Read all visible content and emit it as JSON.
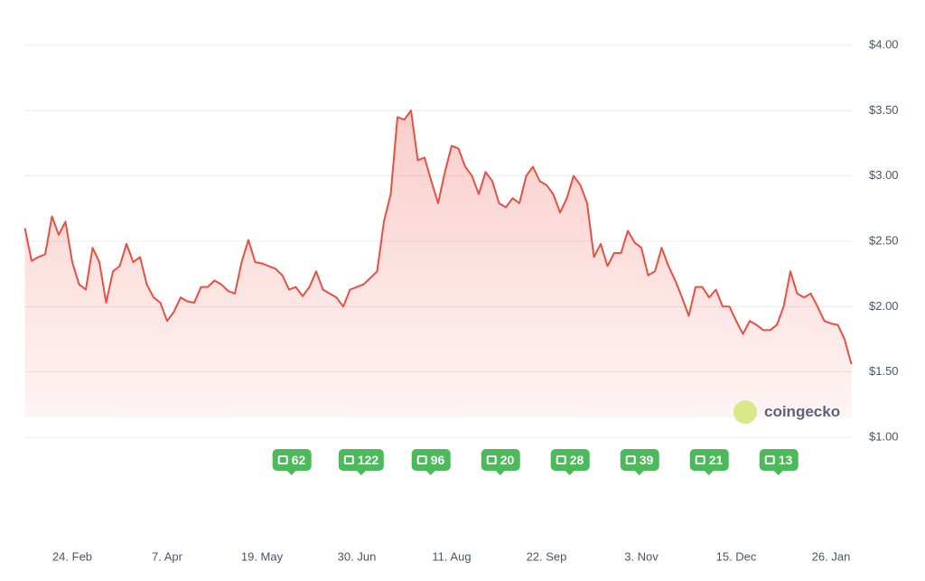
{
  "watermark": "coingecko",
  "chart_data": {
    "type": "line",
    "color": "#ea4f43",
    "grid": true,
    "ylim": [
      1,
      4
    ],
    "yticks": [
      {
        "value": 1,
        "label": "$1.00"
      },
      {
        "value": 1.5,
        "label": "$1.50"
      },
      {
        "value": 2,
        "label": "$2.00"
      },
      {
        "value": 2.5,
        "label": "$2.50"
      },
      {
        "value": 3,
        "label": "$3.00"
      },
      {
        "value": 3.5,
        "label": "$3.50"
      },
      {
        "value": 4,
        "label": "$4.00"
      }
    ],
    "categories": [
      null,
      null,
      null,
      null,
      null,
      null,
      null,
      "24. Feb",
      null,
      null,
      null,
      null,
      null,
      null,
      null,
      null,
      null,
      null,
      null,
      null,
      null,
      "7. Apr",
      null,
      null,
      null,
      null,
      null,
      null,
      null,
      null,
      null,
      null,
      null,
      null,
      null,
      "19. May",
      null,
      null,
      null,
      null,
      null,
      null,
      null,
      null,
      null,
      null,
      null,
      null,
      null,
      "30. Jun",
      null,
      null,
      null,
      null,
      null,
      null,
      null,
      null,
      null,
      null,
      null,
      null,
      null,
      "11. Aug",
      null,
      null,
      null,
      null,
      null,
      null,
      null,
      null,
      null,
      null,
      null,
      null,
      null,
      "22. Sep",
      null,
      null,
      null,
      null,
      null,
      null,
      null,
      null,
      null,
      null,
      null,
      null,
      null,
      "3. Nov",
      null,
      null,
      null,
      null,
      null,
      null,
      null,
      null,
      null,
      null,
      null,
      null,
      null,
      "15. Dec",
      null,
      null,
      null,
      null,
      null,
      null,
      null,
      null,
      null,
      null,
      null,
      null,
      null,
      "26. Jan",
      null,
      null,
      null
    ],
    "values": [
      2.6,
      2.35,
      2.38,
      2.4,
      2.69,
      2.55,
      2.65,
      2.34,
      2.17,
      2.13,
      2.45,
      2.34,
      2.03,
      2.27,
      2.31,
      2.48,
      2.34,
      2.38,
      2.17,
      2.07,
      2.03,
      1.89,
      1.96,
      2.07,
      2.04,
      2.03,
      2.15,
      2.15,
      2.2,
      2.17,
      2.12,
      2.1,
      2.34,
      2.51,
      2.34,
      2.33,
      2.31,
      2.29,
      2.24,
      2.13,
      2.15,
      2.08,
      2.15,
      2.27,
      2.13,
      2.1,
      2.07,
      2.0,
      2.13,
      2.15,
      2.17,
      2.22,
      2.27,
      2.65,
      2.86,
      3.45,
      3.43,
      3.5,
      3.12,
      3.14,
      2.96,
      2.79,
      3.03,
      3.23,
      3.21,
      3.07,
      3.0,
      2.86,
      3.03,
      2.96,
      2.79,
      2.76,
      2.83,
      2.79,
      3.0,
      3.07,
      2.96,
      2.93,
      2.86,
      2.72,
      2.83,
      3.0,
      2.93,
      2.79,
      2.38,
      2.48,
      2.31,
      2.41,
      2.41,
      2.58,
      2.49,
      2.45,
      2.24,
      2.27,
      2.45,
      2.31,
      2.2,
      2.07,
      1.93,
      2.15,
      2.15,
      2.07,
      2.13,
      2.0,
      2.0,
      1.89,
      1.79,
      1.89,
      1.86,
      1.82,
      1.82,
      1.86,
      2.0,
      2.27,
      2.1,
      2.07,
      2.1,
      2.0,
      1.89,
      1.87,
      1.86,
      1.75,
      1.56
    ],
    "news_counts": [
      62,
      122,
      96,
      20,
      28,
      39,
      21,
      13
    ]
  }
}
